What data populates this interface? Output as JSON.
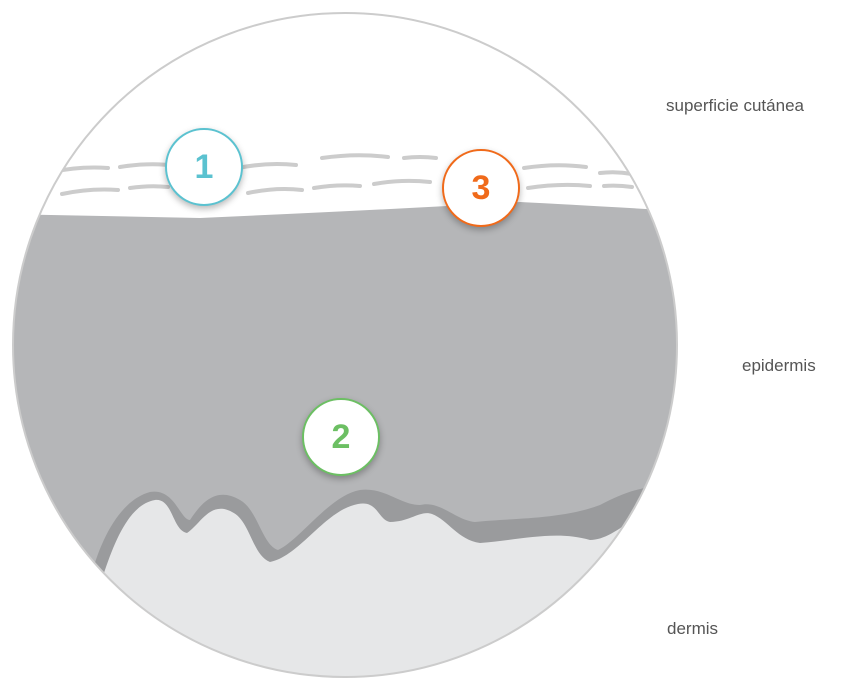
{
  "labels": {
    "surface": "superficie cutánea",
    "epidermis": "epidermis",
    "dermis": "dermis"
  },
  "markers": [
    {
      "number": "1",
      "color": "#5bc2d0"
    },
    {
      "number": "2",
      "color": "#6cbf63"
    },
    {
      "number": "3",
      "color": "#f06a1a"
    }
  ],
  "colors": {
    "epidermis": "#b5b6b8",
    "basal_layer": "#9a9b9d",
    "dermis": "#e6e7e8",
    "circle_outline": "#cccccc",
    "stratum_dashes": "#cccccc"
  }
}
